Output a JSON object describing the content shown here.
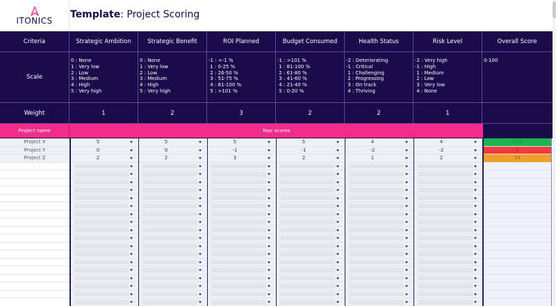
{
  "header": {
    "logo_text": "ITONICS",
    "title_bold": "Template",
    "title_rest": ": Project Scoring"
  },
  "colors": {
    "header_bg": "#1b0a4c",
    "pink": "#f52b8a",
    "green": "#1db454",
    "red": "#f23b3b",
    "orange": "#f0a02a"
  },
  "table": {
    "criteria_label": "Criteria",
    "scale_label": "Scale",
    "weight_label": "Weight",
    "columns": [
      {
        "name": "Strategic Ambition",
        "scale": "0 : None\n1 : Very low\n2 : Low\n3 : Medium\n4 : High\n5 : Very high",
        "weight": "1"
      },
      {
        "name": "Strategic Benefit",
        "scale": "0 : None\n1 : Very low\n2 : Low\n3 : Medium\n4 : High\n5 : Very high",
        "weight": "2"
      },
      {
        "name": "ROI Planned",
        "scale": "-1 : <-1 %\n 1 : 0-25 %\n 2 : 26-50 %\n 3 : 51-75 %\n 4 : 81-100 %\n 5 : >101 %",
        "weight": "3"
      },
      {
        "name": "Budget Consumed",
        "scale": "-1 : >101 %\n 1 : 81-100 %\n 2 : 61-80 %\n 3 : 41-60 %\n 4 : 21-40 %\n 5 : 0-20 %",
        "weight": "2"
      },
      {
        "name": "Health Status",
        "scale": "-2 : Deteriorating\n-1 : Critical\n 1 : Challenging\n 2 : Progressing\n 3 : On track\n 4 : Thriving",
        "weight": "2"
      },
      {
        "name": "Risk Level",
        "scale": "-2 : Very high\n-1 : High\n 1 : Medium\n 2 : Low\n 3 : Very low\n 4 : None",
        "weight": "1"
      },
      {
        "name": "Overall Score",
        "scale": "0-100",
        "weight": ""
      }
    ],
    "project_name_label": "Project name",
    "your_scores_label": "Your scores",
    "projects": [
      {
        "name": "Project X",
        "scores": [
          "5",
          "5",
          "5",
          "5",
          "4",
          "4"
        ],
        "overall": "100"
      },
      {
        "name": "Project Y",
        "scores": [
          "0",
          "0",
          "-1",
          "-1",
          "-2",
          "-2"
        ],
        "overall": "0"
      },
      {
        "name": "Project Z",
        "scores": [
          "2",
          "2",
          "3",
          "2",
          "1",
          "2"
        ],
        "overall": "54"
      }
    ],
    "empty_rows": 18
  }
}
